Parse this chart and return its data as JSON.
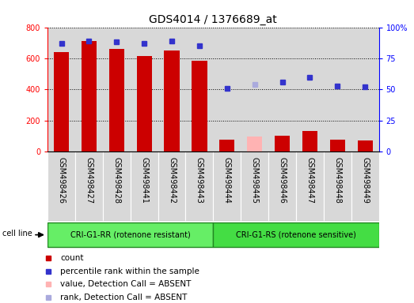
{
  "title": "GDS4014 / 1376689_at",
  "samples": [
    "GSM498426",
    "GSM498427",
    "GSM498428",
    "GSM498441",
    "GSM498442",
    "GSM498443",
    "GSM498444",
    "GSM498445",
    "GSM498446",
    "GSM498447",
    "GSM498448",
    "GSM498449"
  ],
  "bar_values": [
    640,
    710,
    660,
    615,
    650,
    585,
    75,
    95,
    100,
    130,
    75,
    72
  ],
  "bar_colors": [
    "#cc0000",
    "#cc0000",
    "#cc0000",
    "#cc0000",
    "#cc0000",
    "#cc0000",
    "#cc0000",
    "#ffb3b3",
    "#cc0000",
    "#cc0000",
    "#cc0000",
    "#cc0000"
  ],
  "rank_values": [
    87,
    89,
    88,
    87,
    89,
    85,
    51,
    54,
    56,
    60,
    53,
    52
  ],
  "rank_colors": [
    "#3333cc",
    "#3333cc",
    "#3333cc",
    "#3333cc",
    "#3333cc",
    "#3333cc",
    "#3333cc",
    "#aaaadd",
    "#3333cc",
    "#3333cc",
    "#3333cc",
    "#3333cc"
  ],
  "group1_label": "CRI-G1-RR (rotenone resistant)",
  "group2_label": "CRI-G1-RS (rotenone sensitive)",
  "group1_count": 6,
  "group2_count": 6,
  "ylim_left": [
    0,
    800
  ],
  "ylim_right": [
    0,
    100
  ],
  "yticks_left": [
    0,
    200,
    400,
    600,
    800
  ],
  "ytick_labels_left": [
    "0",
    "200",
    "400",
    "600",
    "800"
  ],
  "yticks_right": [
    0,
    25,
    50,
    75,
    100
  ],
  "ytick_labels_right": [
    "0",
    "25",
    "50",
    "75",
    "100%"
  ],
  "cell_line_label": "cell line",
  "legend_items": [
    {
      "label": "count",
      "color": "#cc0000"
    },
    {
      "label": "percentile rank within the sample",
      "color": "#3333cc"
    },
    {
      "label": "value, Detection Call = ABSENT",
      "color": "#ffb3b3"
    },
    {
      "label": "rank, Detection Call = ABSENT",
      "color": "#aaaadd"
    }
  ],
  "bg_color": "#d8d8d8",
  "group_color1": "#66ee66",
  "group_color2": "#44dd44",
  "title_fontsize": 10,
  "tick_fontsize": 7,
  "label_fontsize": 7,
  "legend_fontsize": 7.5,
  "bar_width": 0.55
}
